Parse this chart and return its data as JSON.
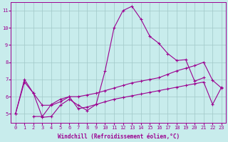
{
  "bg_color": "#c8ecec",
  "line_color": "#9b0090",
  "grid_color": "#a0c8c8",
  "xlabel": "Windchill (Refroidissement éolien,°C)",
  "xlim": [
    -0.5,
    23.5
  ],
  "ylim": [
    4.5,
    11.5
  ],
  "yticks": [
    5,
    6,
    7,
    8,
    9,
    10,
    11
  ],
  "xticks": [
    0,
    1,
    2,
    3,
    4,
    5,
    6,
    7,
    8,
    9,
    10,
    11,
    12,
    13,
    14,
    15,
    16,
    17,
    18,
    19,
    20,
    21,
    22,
    23
  ],
  "line1_x": [
    0,
    1,
    2,
    3,
    4,
    5,
    6,
    7,
    8,
    9,
    10,
    11,
    12,
    13,
    14,
    15,
    16,
    17,
    18,
    19,
    20,
    21
  ],
  "line1_y": [
    5.0,
    7.0,
    6.2,
    4.8,
    4.85,
    5.5,
    5.85,
    5.5,
    5.2,
    5.55,
    7.5,
    10.0,
    11.0,
    11.25,
    10.5,
    9.5,
    9.1,
    8.5,
    8.1,
    8.15,
    6.9,
    7.1
  ],
  "line2_x": [
    0,
    1,
    2,
    3,
    4,
    5,
    6,
    7,
    8,
    9,
    10,
    11,
    12,
    13,
    14,
    15,
    16,
    17,
    18,
    19,
    20,
    21,
    22,
    23
  ],
  "line2_y": [
    5.0,
    6.85,
    6.2,
    5.5,
    5.5,
    5.7,
    6.0,
    6.0,
    6.1,
    6.2,
    6.35,
    6.5,
    6.65,
    6.8,
    6.9,
    7.0,
    7.1,
    7.3,
    7.5,
    7.65,
    7.8,
    8.0,
    6.95,
    6.5
  ],
  "line3_x": [
    2,
    3,
    4,
    5,
    6,
    7,
    8,
    9,
    10,
    11,
    12,
    13,
    14,
    15,
    16,
    17,
    18,
    19,
    20,
    21,
    22,
    23
  ],
  "line3_y": [
    4.85,
    4.85,
    5.55,
    5.85,
    6.0,
    5.3,
    5.4,
    5.55,
    5.7,
    5.85,
    5.95,
    6.05,
    6.15,
    6.25,
    6.35,
    6.45,
    6.55,
    6.65,
    6.75,
    6.85,
    5.55,
    6.55
  ]
}
